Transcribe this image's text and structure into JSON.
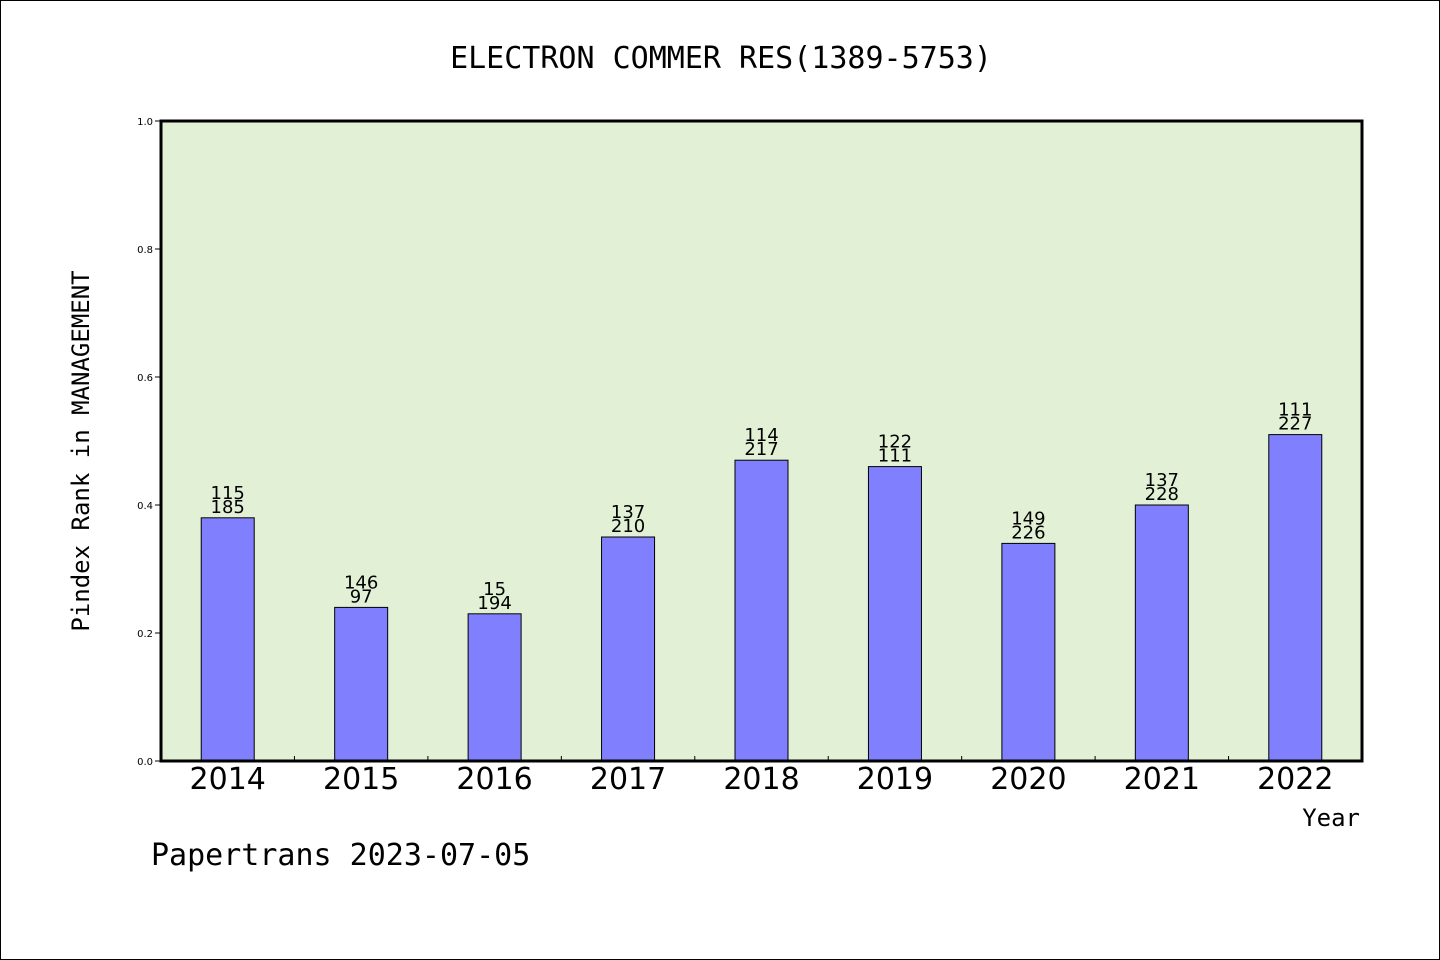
{
  "chart_data": {
    "type": "bar",
    "title": "ELECTRON COMMER RES(1389-5753)",
    "xlabel": "Year",
    "ylabel": "Pindex Rank in MANAGEMENT",
    "categories": [
      "2014",
      "2015",
      "2016",
      "2017",
      "2018",
      "2019",
      "2020",
      "2021",
      "2022"
    ],
    "values": [
      0.38,
      0.24,
      0.23,
      0.35,
      0.47,
      0.46,
      0.34,
      0.4,
      0.51
    ],
    "labels_top": [
      "115",
      "146",
      "15",
      "137",
      "114",
      "122",
      "149",
      "137",
      "111"
    ],
    "labels_bottom": [
      "185",
      "97",
      "194",
      "210",
      "217",
      "111",
      "226",
      "228",
      "227"
    ],
    "ylim": [
      0.0,
      1.0
    ],
    "yticks": [
      "0.0",
      "0.2",
      "0.4",
      "0.6",
      "0.8",
      "1.0"
    ],
    "grid": false,
    "legend": "none",
    "colors": {
      "bar": "#8080ff",
      "plot_bg": "#e2f0d6",
      "frame": "#000000"
    }
  },
  "footer": {
    "text": "Papertrans 2023-07-05"
  }
}
